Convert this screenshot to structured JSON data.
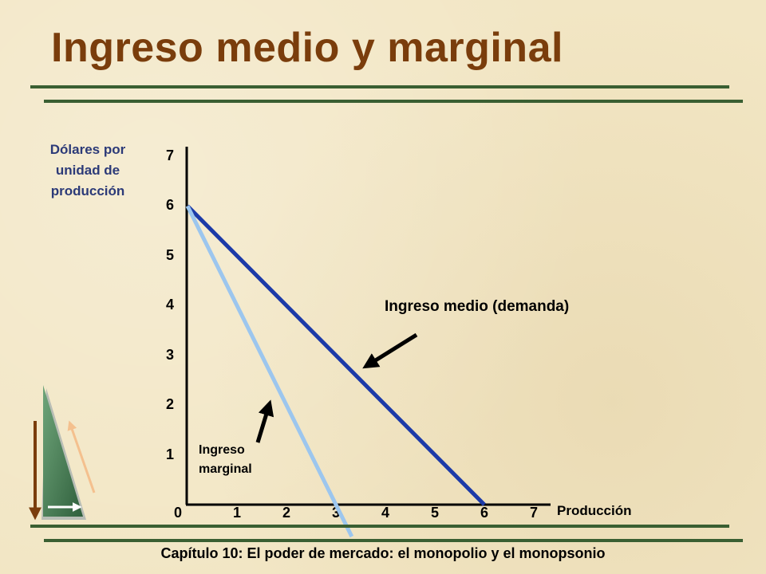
{
  "slide": {
    "title": "Ingreso medio y marginal",
    "footer": "Capítulo 10: El poder de mercado: el monopolio y el monopsonio"
  },
  "chart_data": {
    "type": "line",
    "title": "Ingreso medio y marginal",
    "ylabel": "Dólares por unidad de producción",
    "xlabel": "Producción",
    "xlim": [
      0,
      7
    ],
    "ylim": [
      0,
      7
    ],
    "x_ticks": [
      "0",
      "1",
      "2",
      "3",
      "4",
      "5",
      "6",
      "7"
    ],
    "y_ticks": [
      "1",
      "2",
      "3",
      "4",
      "5",
      "6",
      "7"
    ],
    "grid": false,
    "series": [
      {
        "name": "Ingreso medio (demanda)",
        "color": "#1c3aa8",
        "x": [
          0,
          6
        ],
        "y": [
          6,
          0
        ]
      },
      {
        "name": "Ingreso marginal",
        "color": "#9cc6ee",
        "x": [
          0,
          3
        ],
        "y": [
          6,
          0
        ]
      }
    ],
    "annotations": [
      {
        "text": "Ingreso medio (demanda)"
      },
      {
        "text_lines": [
          "Ingreso",
          "marginal"
        ]
      }
    ]
  },
  "colors": {
    "title": "#7a3d0c",
    "rule": "#3a5f32",
    "axis_label": "#2c3a78"
  }
}
